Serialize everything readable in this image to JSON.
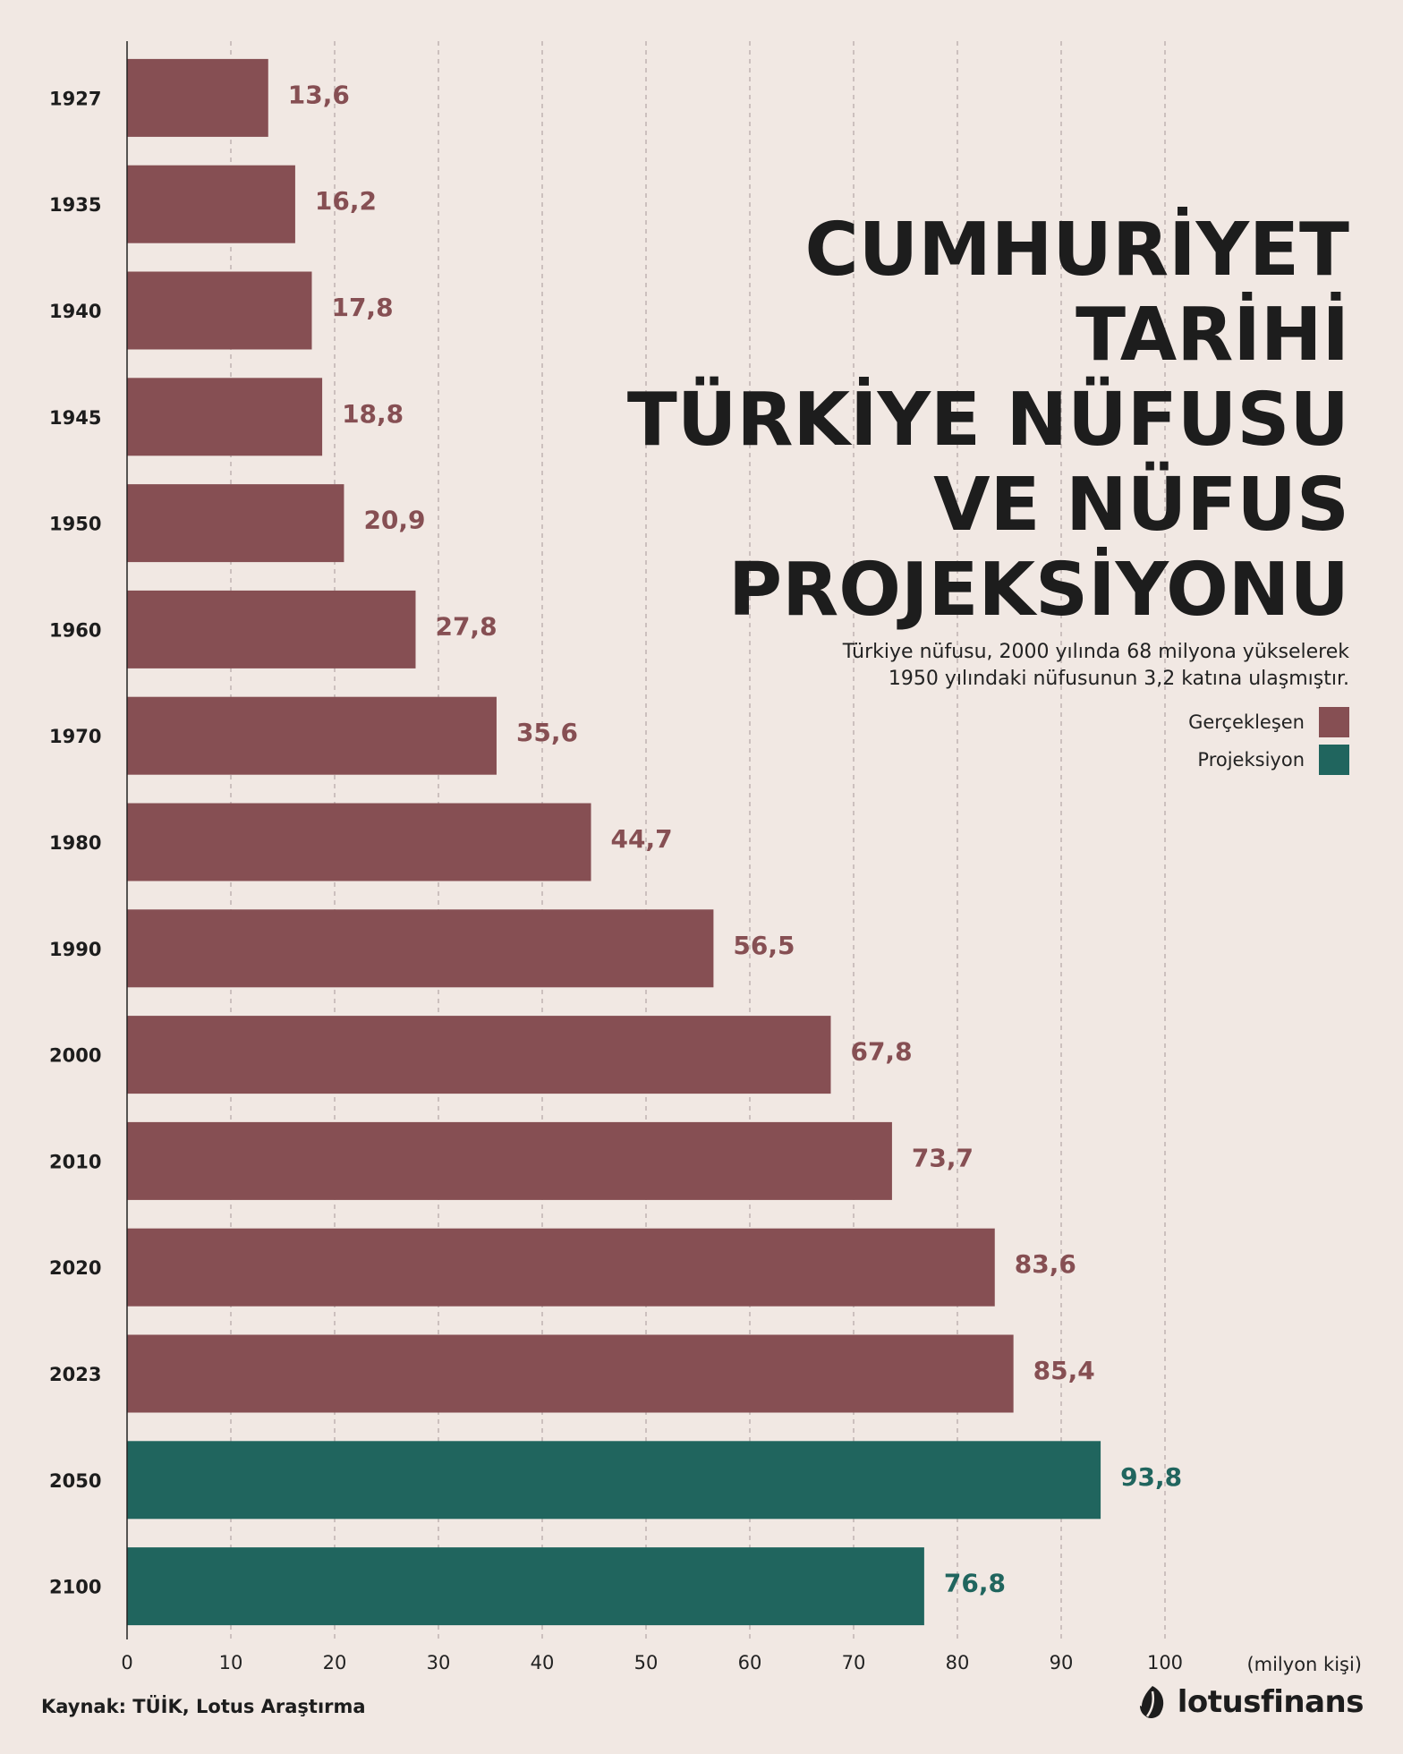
{
  "title_lines": [
    "CUMHURİYET",
    "TARİHİ",
    "TÜRKİYE NÜFUSU",
    "VE NÜFUS",
    "PROJEKSİYONU"
  ],
  "subtitle_lines": [
    "Türkiye nüfusu, 2000 yılında 68 milyona yükselerek",
    "1950 yılındaki nüfusunun 3,2 katına ulaşmıştır."
  ],
  "legend": [
    {
      "label": "Gerçekleşen",
      "color": "#864f53"
    },
    {
      "label": "Projeksiyon",
      "color": "#20655e"
    }
  ],
  "source": "Kaynak: TÜİK, Lotus Araştırma",
  "brand": "lotusfinans",
  "colors": {
    "actual": "#864f53",
    "projection": "#20655e",
    "axis": "#222222",
    "grid": "#b3a7a5",
    "background": "#f1e8e3"
  },
  "chart_data": {
    "type": "bar",
    "orientation": "horizontal",
    "categories": [
      "1927",
      "1935",
      "1940",
      "1945",
      "1950",
      "1960",
      "1970",
      "1980",
      "1990",
      "2000",
      "2010",
      "2020",
      "2023",
      "2050",
      "2100"
    ],
    "values": [
      13.6,
      16.2,
      17.8,
      18.8,
      20.9,
      27.8,
      35.6,
      44.7,
      56.5,
      67.8,
      73.7,
      83.6,
      85.4,
      93.8,
      76.8
    ],
    "value_labels": [
      "13,6",
      "16,2",
      "17,8",
      "18,8",
      "20,9",
      "27,8",
      "35,6",
      "44,7",
      "56,5",
      "67,8",
      "73,7",
      "83,6",
      "85,4",
      "93,8",
      "76,8"
    ],
    "kind": [
      "Gerçekleşen",
      "Gerçekleşen",
      "Gerçekleşen",
      "Gerçekleşen",
      "Gerçekleşen",
      "Gerçekleşen",
      "Gerçekleşen",
      "Gerçekleşen",
      "Gerçekleşen",
      "Gerçekleşen",
      "Gerçekleşen",
      "Gerçekleşen",
      "Gerçekleşen",
      "Projeksiyon",
      "Projeksiyon"
    ],
    "xlim": [
      0,
      100
    ],
    "xticks": [
      0,
      10,
      20,
      30,
      40,
      50,
      60,
      70,
      80,
      90,
      100
    ],
    "xlabel": "(milyon kişi)",
    "ylabel": "",
    "grid": "vertical dashed",
    "legend_position": "right"
  }
}
